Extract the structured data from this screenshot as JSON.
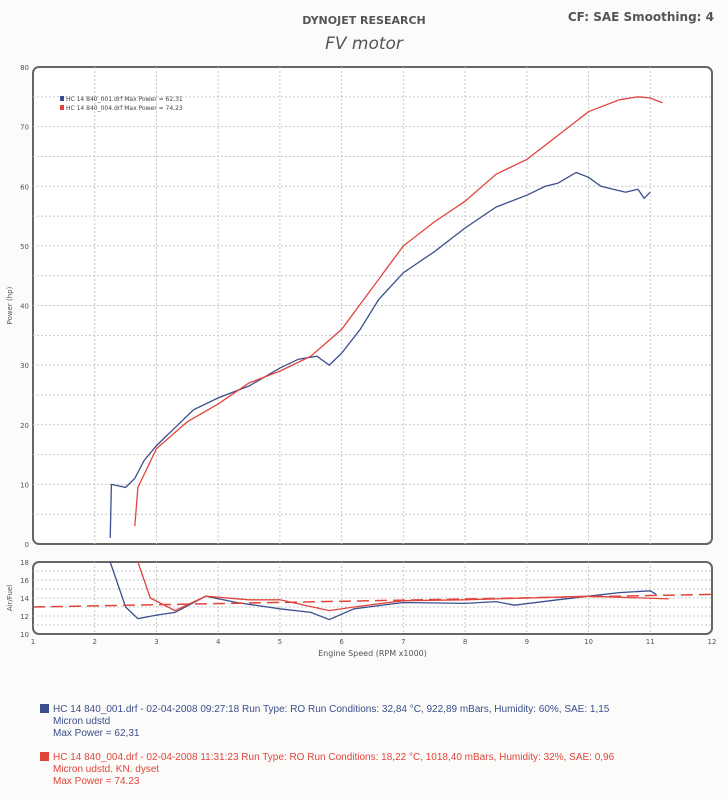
{
  "header": {
    "brand": "DYNOJET RESEARCH",
    "settings": "CF: SAE  Smoothing: 4",
    "title": "FV motor"
  },
  "colors": {
    "run1": "#3b4f8c",
    "run2": "#e0453c",
    "grid": "#c8c8c8"
  },
  "chart_data": [
    {
      "type": "line",
      "ylabel": "Power (hp)",
      "xlim": [
        1,
        12
      ],
      "ylim": [
        0,
        80
      ],
      "yticks": [
        0,
        10,
        20,
        30,
        40,
        50,
        60,
        70,
        80
      ],
      "grid": true,
      "legend_placement": "top-left",
      "legend": [
        "HC 14 840_001.drf Max Power = 62,31",
        "HC 14 840_004.drf Max Power = 74,23"
      ],
      "series": [
        {
          "x": [
            2.25,
            2.27,
            2.5,
            2.65,
            2.8,
            3,
            3.3,
            3.6,
            4,
            4.5,
            5,
            5.3,
            5.6,
            5.8,
            6,
            6.3,
            6.6,
            7,
            7.5,
            8,
            8.5,
            9,
            9.3,
            9.5,
            9.8,
            10,
            10.2,
            10.4,
            10.6,
            10.8,
            10.9,
            11
          ],
          "y": [
            1,
            10,
            9.5,
            11,
            14,
            16.5,
            19.5,
            22.5,
            24.5,
            26.5,
            29.5,
            31,
            31.5,
            30,
            32,
            36,
            41,
            45.5,
            49,
            53,
            56.5,
            58.5,
            60,
            60.5,
            62.3,
            61.5,
            60,
            59.5,
            59,
            59.5,
            58,
            59
          ]
        },
        {
          "x": [
            2.65,
            2.7,
            3,
            3.5,
            4,
            4.5,
            5,
            5.5,
            6,
            6.5,
            7,
            7.5,
            8,
            8.5,
            9,
            9.5,
            10,
            10.5,
            10.8,
            11,
            11.2
          ],
          "y": [
            3,
            9.5,
            16,
            20.5,
            23.5,
            27,
            29,
            31.5,
            36,
            43,
            50,
            54,
            57.5,
            62,
            64.5,
            68.5,
            72.5,
            74.5,
            75,
            74.8,
            74
          ]
        }
      ]
    },
    {
      "type": "line",
      "ylabel": "Air/Fuel",
      "xlabel": "Engine Speed (RPM x1000)",
      "xlim": [
        1,
        12
      ],
      "ylim": [
        10,
        18
      ],
      "xticks": [
        1,
        2,
        3,
        4,
        5,
        6,
        7,
        8,
        9,
        10,
        11,
        12
      ],
      "yticks": [
        10,
        12,
        14,
        16,
        18
      ],
      "grid": true,
      "series": [
        {
          "x": [
            2.25,
            2.5,
            2.7,
            3,
            3.3,
            3.8,
            4.3,
            5,
            5.5,
            5.8,
            6.2,
            7,
            8,
            8.5,
            8.8,
            9.5,
            10,
            10.5,
            11,
            11.1
          ],
          "y": [
            18,
            13,
            11.7,
            12.1,
            12.4,
            14.2,
            13.5,
            12.8,
            12.4,
            11.6,
            12.8,
            13.5,
            13.4,
            13.6,
            13.2,
            13.8,
            14.2,
            14.6,
            14.8,
            14.4
          ]
        },
        {
          "x": [
            2.7,
            2.9,
            3.3,
            3.8,
            4.5,
            5,
            5.4,
            5.8,
            6.2,
            7,
            8,
            9,
            10,
            11.3
          ],
          "y": [
            18,
            14,
            12.6,
            14.2,
            13.8,
            13.8,
            13.2,
            12.6,
            13,
            13.7,
            13.8,
            14,
            14.2,
            13.9
          ]
        },
        {
          "x": [
            1,
            12
          ],
          "y": [
            13,
            14.4
          ],
          "style": "dashed"
        }
      ]
    }
  ],
  "runs": [
    {
      "line": "HC 14 840_001.drf - 02-04-2008 09:27:18  Run Type: RO  Run Conditions: 32,84 °C, 922,89 mBars,  Humidity:  60%, SAE: 1,15",
      "desc": "Micron udstd",
      "max": "Max Power = 62,31"
    },
    {
      "line": "HC 14 840_004.drf - 02-04-2008 11:31:23  Run Type: RO  Run Conditions: 18,22 °C, 1018,40 mBars,  Humidity:  32%, SAE: 0,96",
      "desc": "Micron udstd. KN. dyset",
      "max": "Max Power = 74.23"
    }
  ]
}
